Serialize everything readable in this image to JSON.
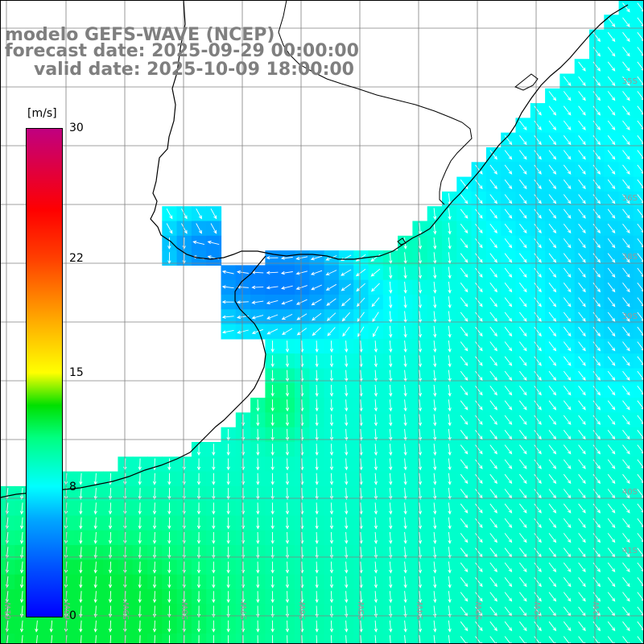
{
  "header": {
    "model_line": "modelo GEFS-WAVE (NCEP)",
    "forecast_line": "forecast date: 2025-09-29 00:00:00",
    "valid_line": "valid date: 2025-10-09 18:00:00"
  },
  "colorbar": {
    "unit": "[m/s]",
    "ticks": [
      "30",
      "22",
      "15",
      "8",
      "0"
    ],
    "tick_values": [
      30,
      22,
      15,
      8,
      0
    ],
    "range": [
      0,
      30
    ],
    "stops": [
      {
        "value": 0,
        "color": "#0000ff"
      },
      {
        "value": 3,
        "color": "#0050ff"
      },
      {
        "value": 6,
        "color": "#00a8ff"
      },
      {
        "value": 8,
        "color": "#00ffff"
      },
      {
        "value": 11,
        "color": "#00ff80"
      },
      {
        "value": 13,
        "color": "#00e000"
      },
      {
        "value": 15,
        "color": "#ffff00"
      },
      {
        "value": 18,
        "color": "#ffb000"
      },
      {
        "value": 22,
        "color": "#ff4000"
      },
      {
        "value": 25,
        "color": "#ff0000"
      },
      {
        "value": 30,
        "color": "#c00080"
      }
    ]
  },
  "map": {
    "field": "wind speed and direction",
    "region": "Rio de la Plata / Uruguay / Argentina coast",
    "lat_labels": [
      "35S",
      "36S",
      "38S",
      "39S",
      "40S",
      "41S"
    ],
    "lon_labels": [
      "61W",
      "60W",
      "59W",
      "58W",
      "57W",
      "56W",
      "55W",
      "54W",
      "53W",
      "52W",
      "51W"
    ],
    "arrow_color": "#ffffff",
    "coastline_color": "#000000",
    "grid_color": "#808080"
  }
}
